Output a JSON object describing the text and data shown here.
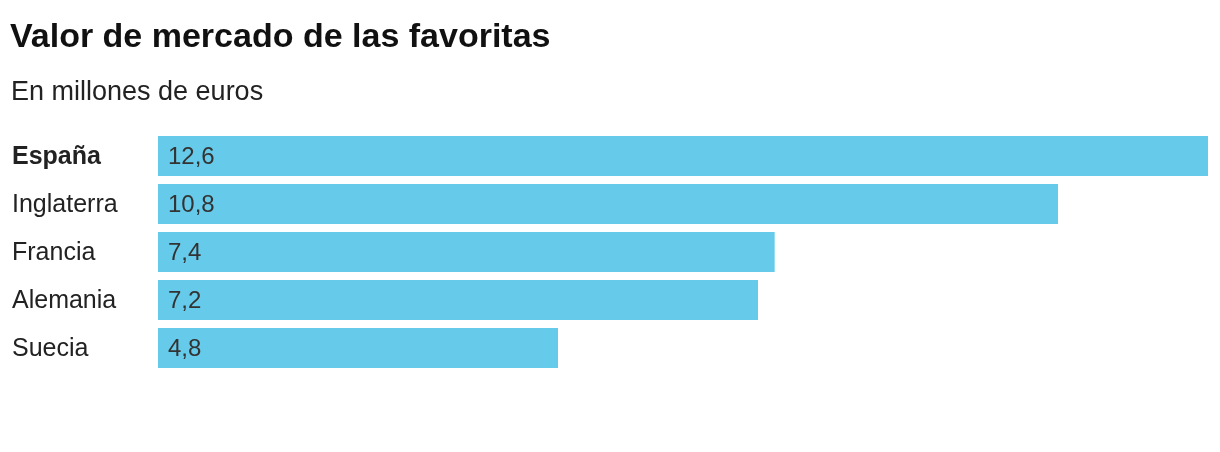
{
  "chart_data": {
    "type": "bar",
    "orientation": "horizontal",
    "title": "Valor de mercado de las favoritas",
    "subtitle": "En millones de euros",
    "categories": [
      "España",
      "Inglaterra",
      "Francia",
      "Alemania",
      "Suecia"
    ],
    "values": [
      12.6,
      10.8,
      7.4,
      7.2,
      4.8
    ],
    "value_labels": [
      "12,6",
      "10,8",
      "7,4",
      "7,2",
      "4,8"
    ],
    "color": "#66cbea"
  }
}
